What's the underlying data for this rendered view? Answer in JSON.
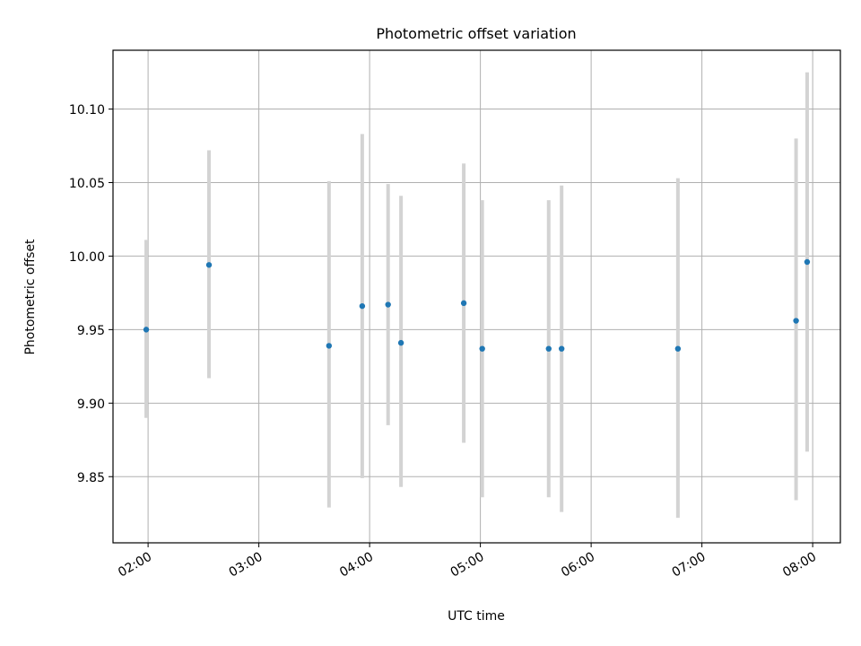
{
  "chart_data": {
    "type": "scatter",
    "title": "Photometric offset variation",
    "xlabel": "UTC time",
    "ylabel": "Photometric offset",
    "x_tick_labels": [
      "02:00",
      "03:00",
      "04:00",
      "05:00",
      "06:00",
      "07:00",
      "08:00"
    ],
    "y_tick_labels": [
      "9.85",
      "9.90",
      "9.95",
      "10.00",
      "10.05",
      "10.10"
    ],
    "xlim": [
      "01:41",
      "08:15"
    ],
    "ylim": [
      9.805,
      10.14
    ],
    "grid": true,
    "marker_color": "#1f77b4",
    "errorbar_color": "#d3d3d3",
    "points": [
      {
        "x": "01:59",
        "y": 9.95,
        "yerr_low": 9.89,
        "yerr_high": 10.011
      },
      {
        "x": "02:33",
        "y": 9.994,
        "yerr_low": 9.917,
        "yerr_high": 10.072
      },
      {
        "x": "03:38",
        "y": 9.939,
        "yerr_low": 9.829,
        "yerr_high": 10.051
      },
      {
        "x": "03:56",
        "y": 9.966,
        "yerr_low": 9.849,
        "yerr_high": 10.083
      },
      {
        "x": "04:10",
        "y": 9.967,
        "yerr_low": 9.885,
        "yerr_high": 10.049
      },
      {
        "x": "04:17",
        "y": 9.941,
        "yerr_low": 9.843,
        "yerr_high": 10.041
      },
      {
        "x": "04:51",
        "y": 9.968,
        "yerr_low": 9.873,
        "yerr_high": 10.063
      },
      {
        "x": "05:01",
        "y": 9.937,
        "yerr_low": 9.836,
        "yerr_high": 10.038
      },
      {
        "x": "05:37",
        "y": 9.937,
        "yerr_low": 9.836,
        "yerr_high": 10.038
      },
      {
        "x": "05:44",
        "y": 9.937,
        "yerr_low": 9.826,
        "yerr_high": 10.048
      },
      {
        "x": "06:47",
        "y": 9.937,
        "yerr_low": 9.822,
        "yerr_high": 10.053
      },
      {
        "x": "07:51",
        "y": 9.956,
        "yerr_low": 9.834,
        "yerr_high": 10.08
      },
      {
        "x": "07:57",
        "y": 9.996,
        "yerr_low": 9.867,
        "yerr_high": 10.125
      }
    ]
  }
}
